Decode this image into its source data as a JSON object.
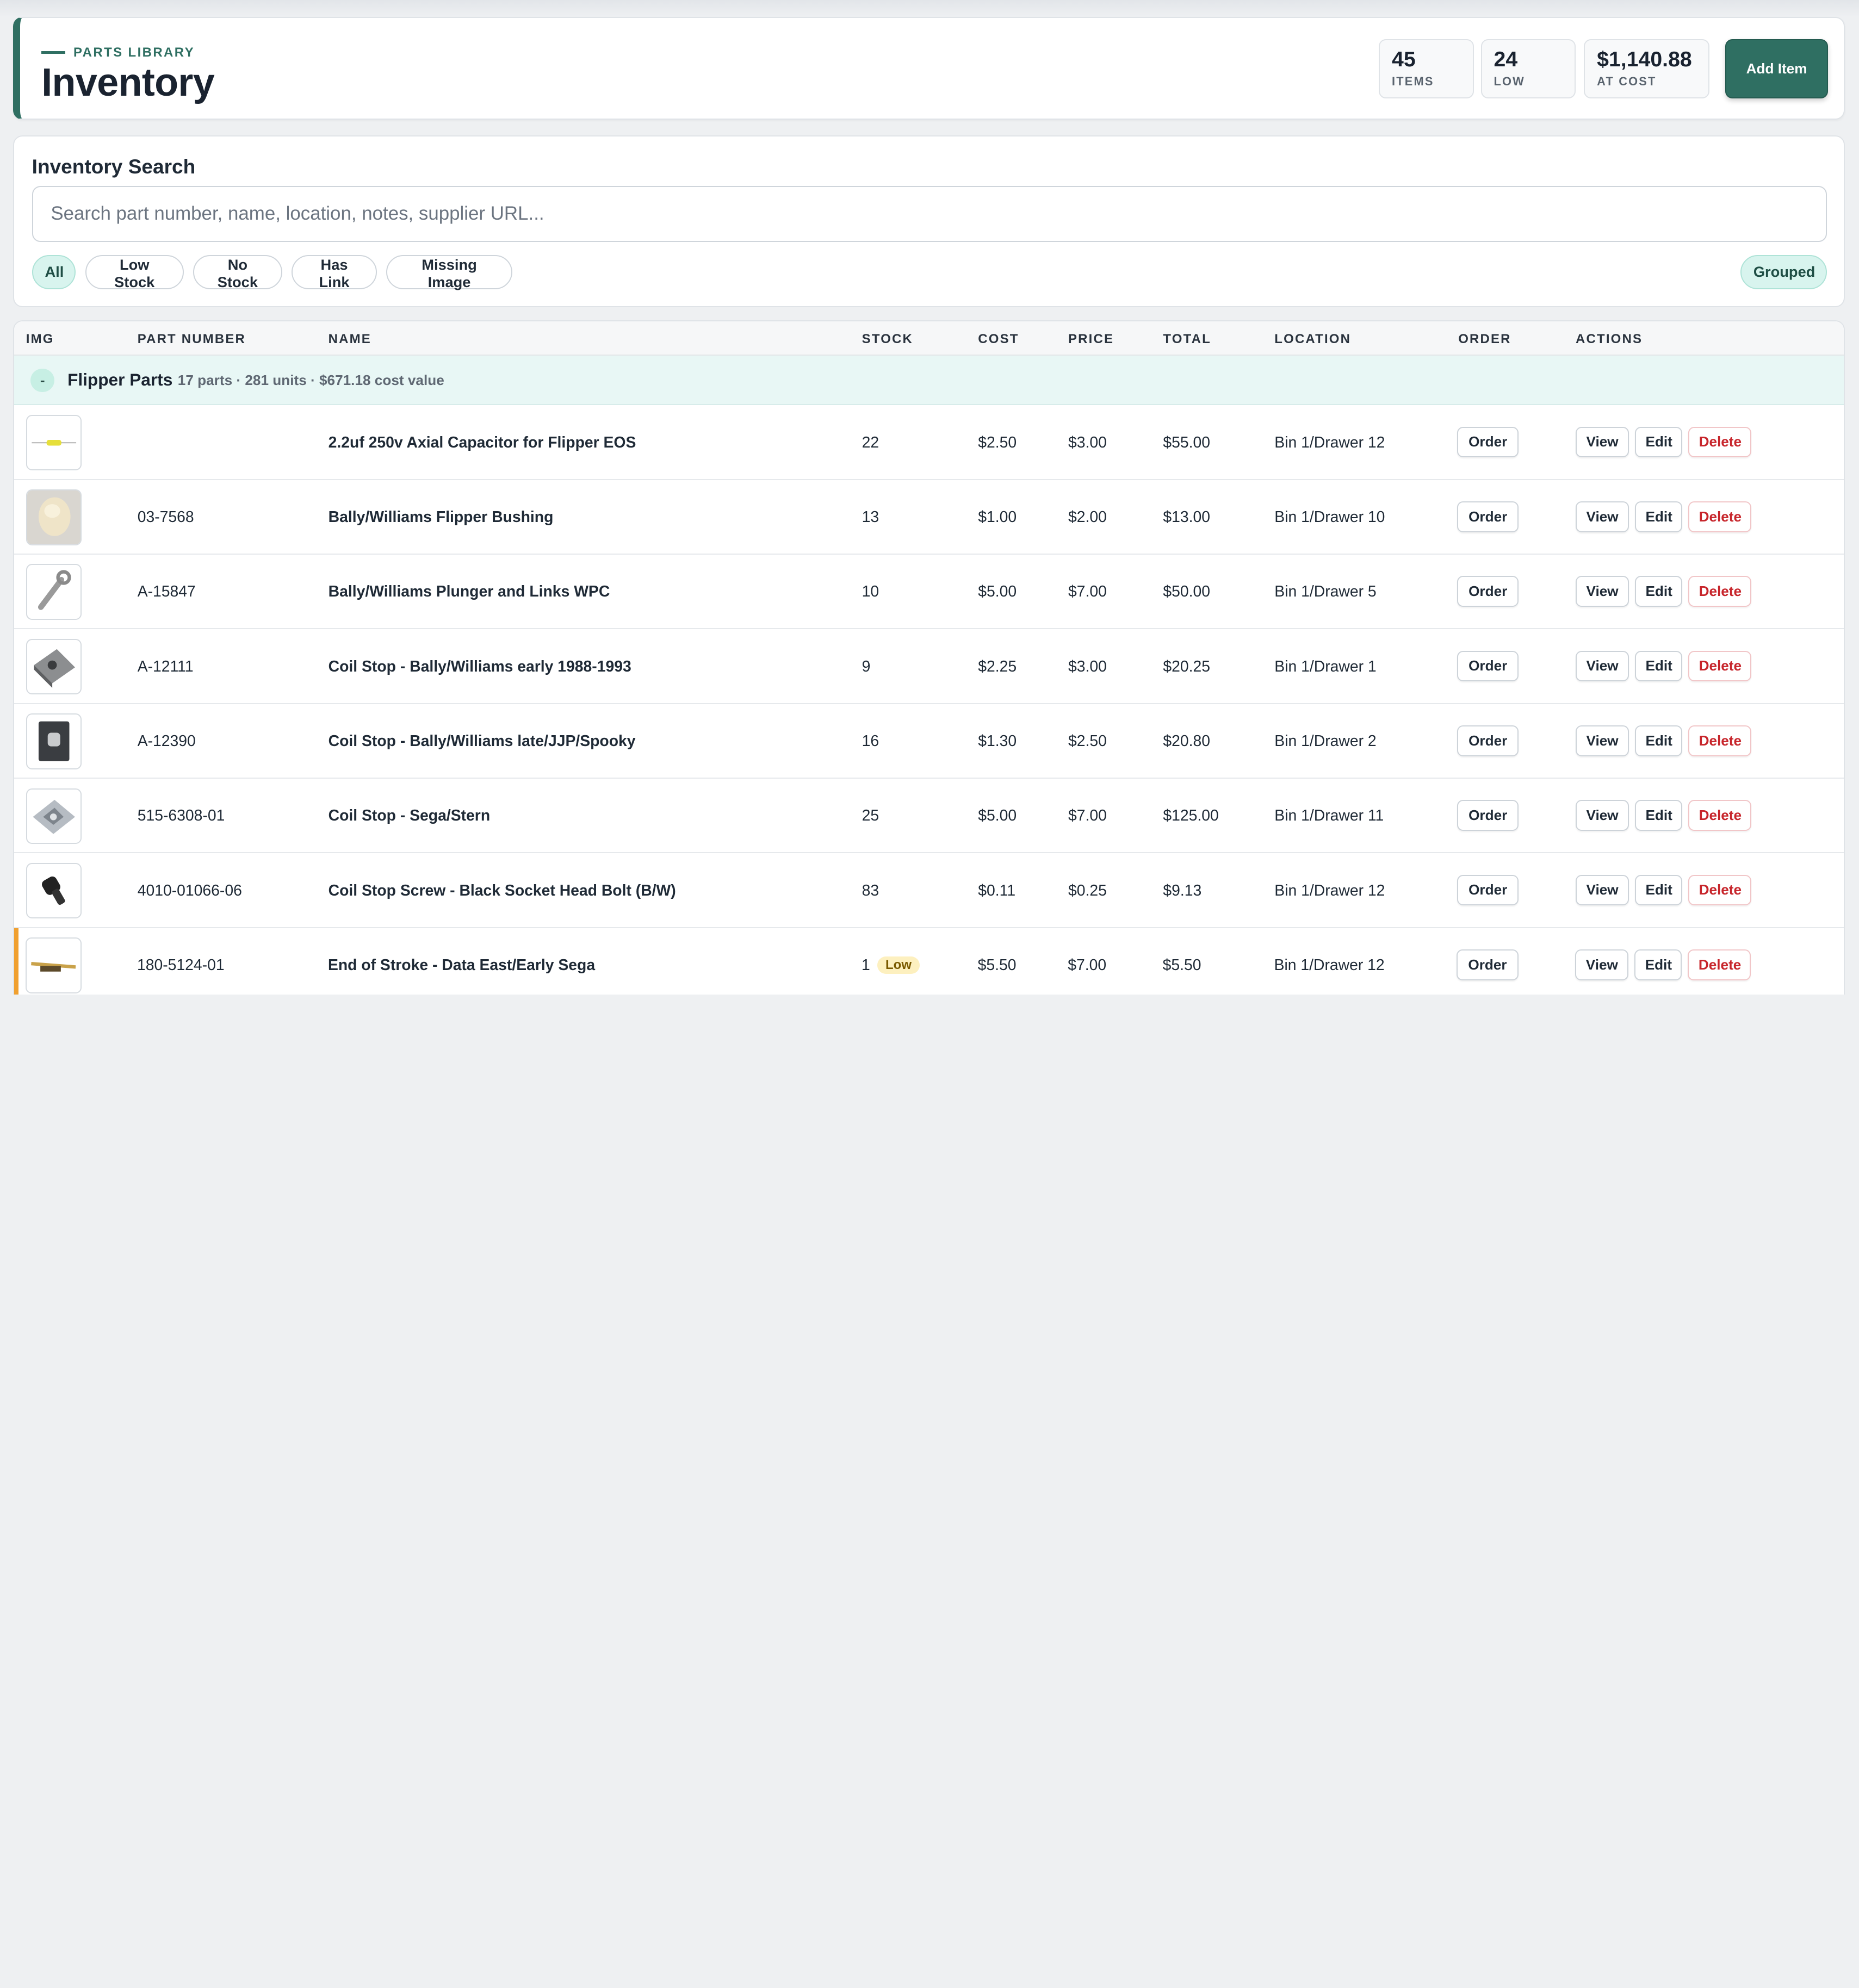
{
  "header": {
    "eyebrow": "PARTS LIBRARY",
    "title": "Inventory",
    "stats": [
      {
        "value": "45",
        "label": "ITEMS"
      },
      {
        "value": "24",
        "label": "LOW"
      },
      {
        "value": "$1,140.88",
        "label": "AT COST"
      }
    ],
    "add_label": "Add Item"
  },
  "search": {
    "title": "Inventory Search",
    "placeholder": "Search part number, name, location, notes, supplier URL...",
    "value": "",
    "filters": [
      "All",
      "Low Stock",
      "No Stock",
      "Has Link",
      "Missing Image"
    ],
    "active_filter": "All",
    "view_toggle": "Grouped"
  },
  "table": {
    "columns": [
      "IMG",
      "PART NUMBER",
      "NAME",
      "STOCK",
      "COST",
      "PRICE",
      "TOTAL",
      "LOCATION",
      "ORDER",
      "ACTIONS"
    ],
    "group": {
      "toggle": "-",
      "name": "Flipper Parts",
      "meta": "17 parts · 281 units · $671.18 cost value"
    },
    "actions": {
      "order": "Order",
      "view": "View",
      "edit": "Edit",
      "delete": "Delete"
    },
    "low_badge": "Low",
    "rows": [
      {
        "part_number": "",
        "name": "2.2uf 250v Axial Capacitor for Flipper EOS",
        "stock": "22",
        "cost": "$2.50",
        "price": "$3.00",
        "total": "$55.00",
        "location": "Bin 1/Drawer 12",
        "low": false,
        "icon": "capacitor-icon"
      },
      {
        "part_number": "03-7568",
        "name": "Bally/Williams Flipper Bushing",
        "stock": "13",
        "cost": "$1.00",
        "price": "$2.00",
        "total": "$13.00",
        "location": "Bin 1/Drawer 10",
        "low": false,
        "icon": "bushing-icon"
      },
      {
        "part_number": "A-15847",
        "name": "Bally/Williams Plunger and Links WPC",
        "stock": "10",
        "cost": "$5.00",
        "price": "$7.00",
        "total": "$50.00",
        "location": "Bin 1/Drawer 5",
        "low": false,
        "icon": "plunger-icon"
      },
      {
        "part_number": "A-12111",
        "name": "Coil Stop - Bally/Williams early 1988-1993",
        "stock": "9",
        "cost": "$2.25",
        "price": "$3.00",
        "total": "$20.25",
        "location": "Bin 1/Drawer 1",
        "low": false,
        "icon": "coil-stop-icon"
      },
      {
        "part_number": "A-12390",
        "name": "Coil Stop - Bally/Williams late/JJP/Spooky",
        "stock": "16",
        "cost": "$1.30",
        "price": "$2.50",
        "total": "$20.80",
        "location": "Bin 1/Drawer 2",
        "low": false,
        "icon": "coil-stop-dark-icon"
      },
      {
        "part_number": "515-6308-01",
        "name": "Coil Stop - Sega/Stern",
        "stock": "25",
        "cost": "$5.00",
        "price": "$7.00",
        "total": "$125.00",
        "location": "Bin 1/Drawer 11",
        "low": false,
        "icon": "coil-stop-bracket-icon"
      },
      {
        "part_number": "4010-01066-06",
        "name": "Coil Stop Screw - Black Socket Head Bolt (B/W)",
        "stock": "83",
        "cost": "$0.11",
        "price": "$0.25",
        "total": "$9.13",
        "location": "Bin 1/Drawer 12",
        "low": false,
        "icon": "bolt-icon"
      },
      {
        "part_number": "180-5124-01",
        "name": "End of Stroke - Data East/Early Sega",
        "stock": "1",
        "cost": "$5.50",
        "price": "$7.00",
        "total": "$5.50",
        "location": "Bin 1/Drawer 12",
        "low": true,
        "icon": "switch-icon"
      }
    ]
  }
}
